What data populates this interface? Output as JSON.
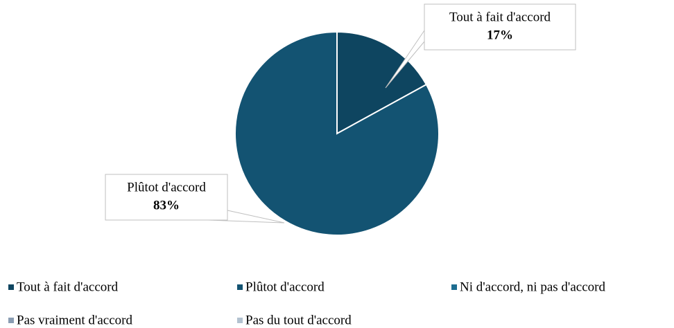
{
  "chart_data": {
    "type": "pie",
    "categories": [
      "Tout à fait d'accord",
      "Plûtot d'accord",
      "Ni d'accord, ni pas d'accord",
      "Pas vraiment d'accord",
      "Pas du tout d'accord"
    ],
    "values": [
      17,
      83,
      0,
      0,
      0
    ],
    "value_labels": [
      "17%",
      "83%",
      null,
      null,
      null
    ],
    "colors": [
      "#0e4560",
      "#135372",
      "#1d6d90",
      "#8a9db3",
      "#b3c2d0"
    ]
  }
}
